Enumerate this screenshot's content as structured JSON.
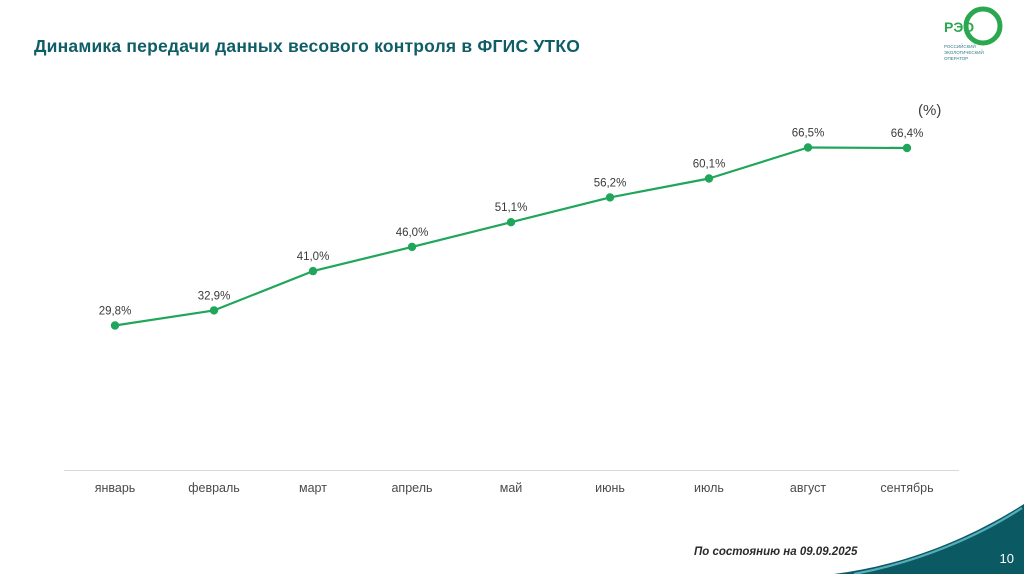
{
  "slide": {
    "title": "Динамика передачи данных весового контроля в ФГИС УТКО",
    "unit_label": "(%)",
    "footnote": "По состоянию на  09.09.2025",
    "page_number": "10"
  },
  "logo": {
    "text": "РЭО",
    "subtext_lines": [
      "РОССИЙСКИЙ",
      "ЭКОЛОГИЧЕСКИЙ",
      "ОПЕРАТОР"
    ]
  },
  "colors": {
    "title": "#0f5d67",
    "line": "#1fa65a",
    "axis": "#d8d8d8",
    "corner_dark": "#0a5963",
    "corner_accent": "#54aebb",
    "logo_green": "#2ba84f"
  },
  "chart_data": {
    "type": "line",
    "title": "Динамика передачи данных весового контроля в ФГИС УТКО",
    "categories": [
      "январь",
      "февраль",
      "март",
      "апрель",
      "май",
      "июнь",
      "июль",
      "август",
      "сентябрь"
    ],
    "values": [
      29.8,
      32.9,
      41.0,
      46.0,
      51.1,
      56.2,
      60.1,
      66.5,
      66.4
    ],
    "labels": [
      "29,8%",
      "32,9%",
      "41,0%",
      "46,0%",
      "51,1%",
      "56,2%",
      "60,1%",
      "66,5%",
      "66,4%"
    ],
    "xlabel": "",
    "ylabel": "(%)",
    "ylim": [
      0,
      75
    ],
    "grid": false,
    "legend": false,
    "line_color": "#1fa65a",
    "marker": "circle"
  }
}
